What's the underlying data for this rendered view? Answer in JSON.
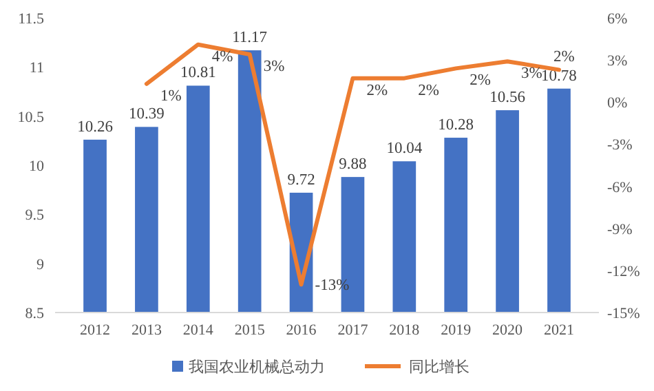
{
  "chart_data": {
    "type": "bar",
    "categories": [
      "2012",
      "2013",
      "2014",
      "2015",
      "2016",
      "2017",
      "2018",
      "2019",
      "2020",
      "2021"
    ],
    "series": [
      {
        "name": "我国农业机械总动力",
        "color": "#4472c4",
        "values": [
          10.26,
          10.39,
          10.81,
          11.17,
          9.72,
          9.88,
          10.04,
          10.28,
          10.56,
          10.78
        ],
        "value_labels": [
          "10.26",
          "10.39",
          "10.81",
          "11.17",
          "9.72",
          "9.88",
          "10.04",
          "10.28",
          "10.56",
          "10.78"
        ]
      },
      {
        "name": "同比增长",
        "type": "line",
        "axis": "y2",
        "color": "#ed7d31",
        "values": [
          null,
          1.3,
          4.1,
          3.4,
          -13,
          1.7,
          1.7,
          2.4,
          2.9,
          2.3
        ],
        "value_labels": [
          null,
          "1%",
          "4%",
          "3%",
          "-13%",
          "2%",
          "2%",
          "2%",
          "3%",
          "2%"
        ]
      }
    ],
    "ylim": [
      8.5,
      11.5
    ],
    "yticks": [
      8.5,
      9,
      9.5,
      10,
      10.5,
      11,
      11.5
    ],
    "y2lim": [
      -15,
      6
    ],
    "y2ticks": [
      {
        "value": -15,
        "label": "-15%"
      },
      {
        "value": -12,
        "label": "-12%"
      },
      {
        "value": -9,
        "label": "-9%"
      },
      {
        "value": -6,
        "label": "-6%"
      },
      {
        "value": -3,
        "label": "-3%"
      },
      {
        "value": 0,
        "label": "0%"
      },
      {
        "value": 3,
        "label": "3%"
      },
      {
        "value": 6,
        "label": "6%"
      }
    ],
    "legend": "bottom",
    "grid": false,
    "marker": "none",
    "line_style": "solid"
  }
}
